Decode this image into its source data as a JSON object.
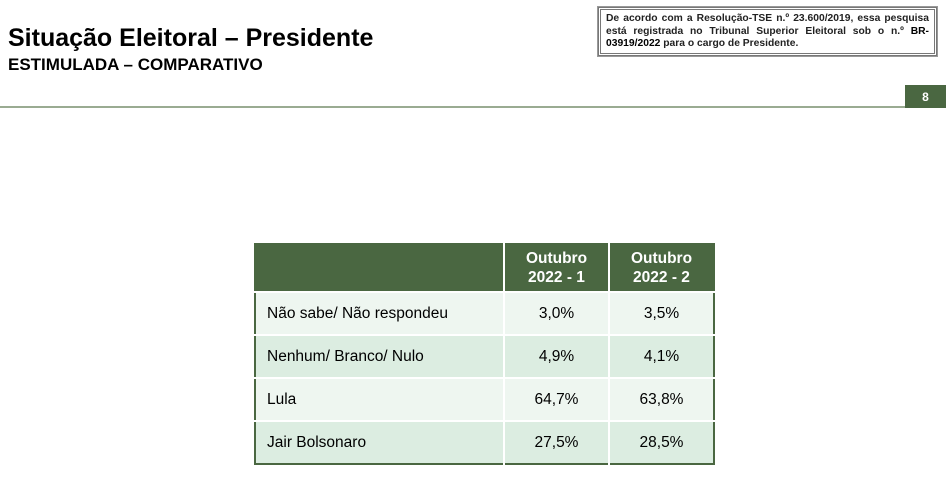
{
  "header": {
    "title": "Situação Eleitoral – Presidente",
    "subtitle": "ESTIMULADA – COMPARATIVO",
    "notice_pre": "De acordo com a Resolução-TSE n.º 23.600/2019, essa pesquisa está registrada no Tribunal Superior Eleitoral sob o n.º ",
    "notice_reg": "BR-03919/2022",
    "notice_post": " para o cargo de Presidente.",
    "page_number": "8"
  },
  "table": {
    "columns": [
      "Outubro 2022 - 1",
      "Outubro 2022 - 2"
    ],
    "rows": [
      {
        "label": "Não sabe/ Não respondeu",
        "v1": "3,0%",
        "v2": "3,5%"
      },
      {
        "label": "Nenhum/ Branco/ Nulo",
        "v1": "4,9%",
        "v2": "4,1%"
      },
      {
        "label": "Lula",
        "v1": "64,7%",
        "v2": "63,8%"
      },
      {
        "label": "Jair Bolsonaro",
        "v1": "27,5%",
        "v2": "28,5%"
      }
    ]
  },
  "colors": {
    "accent": "#4a6741",
    "row_light": "#eef6f0",
    "row_dark": "#dcede1"
  }
}
